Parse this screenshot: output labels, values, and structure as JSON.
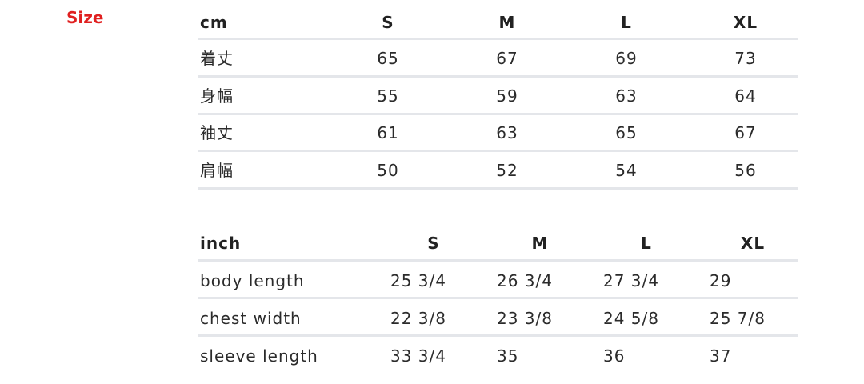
{
  "title": "Size",
  "cm_table": {
    "header": [
      "cm",
      "S",
      "M",
      "L",
      "XL"
    ],
    "rows": [
      [
        "着丈",
        "65",
        "67",
        "69",
        "73"
      ],
      [
        "身幅",
        "55",
        "59",
        "63",
        "64"
      ],
      [
        "袖丈",
        "61",
        "63",
        "65",
        "67"
      ],
      [
        "肩幅",
        "50",
        "52",
        "54",
        "56"
      ]
    ]
  },
  "inch_table": {
    "header": [
      "inch",
      "S",
      "M",
      "L",
      "XL"
    ],
    "rows": [
      [
        "body length",
        "25 3/4",
        "26 3/4",
        "27 3/4",
        "29"
      ],
      [
        "chest width",
        "22 3/8",
        "23 3/8",
        "24 5/8",
        "25 7/8"
      ],
      [
        "sleeve length",
        "33 3/4",
        "35",
        "36",
        "37"
      ]
    ]
  }
}
